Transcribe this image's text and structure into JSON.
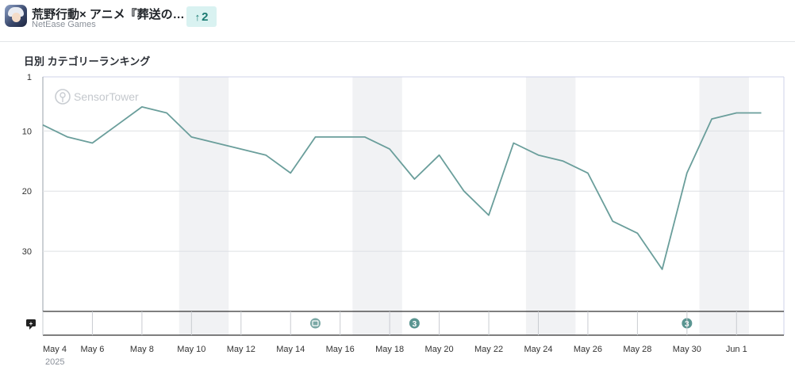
{
  "app": {
    "title": "荒野行動× アニメ『葬送の…",
    "publisher": "NetEase Games",
    "rank_change": "2",
    "rank_change_direction": "up"
  },
  "chart_data": {
    "type": "line",
    "title": "日別 カテゴリーランキング",
    "watermark": "SensorTower",
    "y_reversed": true,
    "ylim": [
      1,
      40
    ],
    "y_ticks": [
      1,
      10,
      20,
      30
    ],
    "x_tick_labels": [
      "May 4",
      "May 6",
      "May 8",
      "May 10",
      "May 12",
      "May 14",
      "May 16",
      "May 18",
      "May 20",
      "May 22",
      "May 24",
      "May 26",
      "May 28",
      "May 30",
      "Jun 1"
    ],
    "x_year_label": "2025",
    "x": [
      "May 4",
      "May 5",
      "May 6",
      "May 7",
      "May 8",
      "May 9",
      "May 10",
      "May 11",
      "May 12",
      "May 13",
      "May 14",
      "May 15",
      "May 16",
      "May 17",
      "May 18",
      "May 19",
      "May 20",
      "May 21",
      "May 22",
      "May 23",
      "May 24",
      "May 25",
      "May 26",
      "May 27",
      "May 28",
      "May 29",
      "May 30",
      "May 31",
      "Jun 1",
      "Jun 2"
    ],
    "series": [
      {
        "values": [
          9,
          11,
          12,
          9,
          6,
          7,
          11,
          12,
          13,
          14,
          17,
          11,
          11,
          11,
          13,
          18,
          14,
          20,
          24,
          12,
          14,
          15,
          17,
          25,
          27,
          33,
          17,
          8,
          7,
          7
        ],
        "color": "#6a9e9b"
      }
    ],
    "weekend_shading": [
      [
        "May 10",
        "May 11"
      ],
      [
        "May 17",
        "May 18"
      ],
      [
        "May 24",
        "May 25"
      ],
      [
        "May 31",
        "Jun 1"
      ]
    ],
    "event_markers": [
      {
        "date": "May 15",
        "icon": "app-update-icon"
      },
      {
        "date": "May 19",
        "label": "3"
      },
      {
        "date": "May 30",
        "label": "3"
      }
    ],
    "shade_color": "#f1f2f4",
    "grid": true
  }
}
